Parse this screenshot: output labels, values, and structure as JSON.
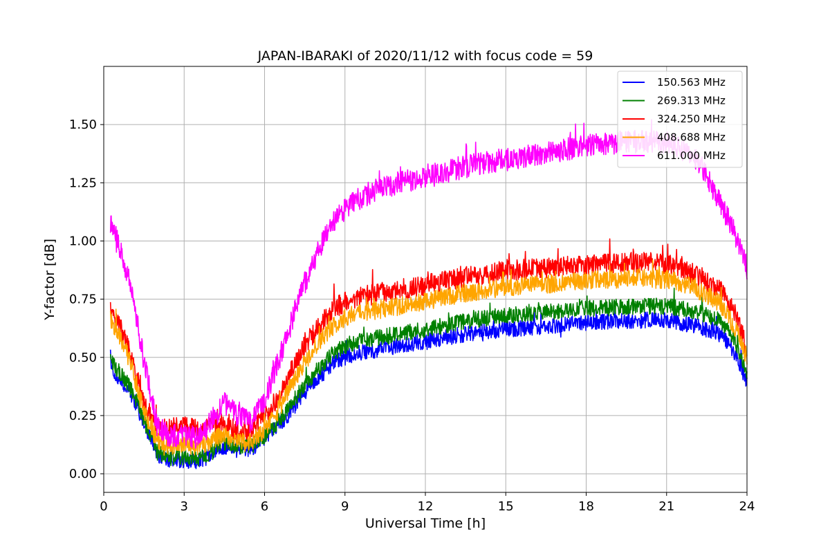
{
  "chart_data": {
    "type": "line",
    "title": "JAPAN-IBARAKI of 2020/11/12 with focus code = 59",
    "xlabel": "Universal Time [h]",
    "ylabel": "Y-factor [dB]",
    "xlim": [
      0,
      24
    ],
    "ylim": [
      -0.08,
      1.75
    ],
    "x_ticks": [
      0,
      3,
      6,
      9,
      12,
      15,
      18,
      21,
      24
    ],
    "x_tick_labels": [
      "0",
      "3",
      "6",
      "9",
      "12",
      "15",
      "18",
      "21",
      "24"
    ],
    "y_ticks": [
      0,
      0.25,
      0.5,
      0.75,
      1.0,
      1.25,
      1.5
    ],
    "y_tick_labels": [
      "0.00",
      "0.25",
      "0.50",
      "0.75",
      "1.00",
      "1.25",
      "1.50"
    ],
    "grid": true,
    "legend_position": "top-right",
    "x": [
      0.25,
      0.5,
      1.0,
      1.5,
      2.0,
      2.5,
      3.0,
      3.5,
      4.0,
      4.5,
      5.0,
      5.5,
      6.0,
      6.5,
      7.0,
      7.5,
      8.0,
      8.5,
      9.0,
      9.5,
      10.0,
      11.0,
      12.0,
      13.0,
      14.0,
      15.0,
      16.0,
      17.0,
      18.0,
      19.0,
      20.0,
      21.0,
      21.5,
      22.0,
      22.5,
      23.0,
      23.5,
      24.0
    ],
    "series": [
      {
        "name": "150.563 MHz",
        "color": "#0000ff",
        "noise": 0.035,
        "values": [
          0.46,
          0.42,
          0.35,
          0.22,
          0.08,
          0.06,
          0.06,
          0.05,
          0.08,
          0.12,
          0.1,
          0.11,
          0.15,
          0.2,
          0.27,
          0.35,
          0.41,
          0.47,
          0.5,
          0.52,
          0.53,
          0.55,
          0.57,
          0.59,
          0.61,
          0.62,
          0.63,
          0.64,
          0.65,
          0.655,
          0.66,
          0.66,
          0.65,
          0.64,
          0.62,
          0.6,
          0.53,
          0.4
        ]
      },
      {
        "name": "269.313 MHz",
        "color": "#008000",
        "noise": 0.035,
        "values": [
          0.49,
          0.45,
          0.37,
          0.23,
          0.09,
          0.07,
          0.07,
          0.06,
          0.09,
          0.13,
          0.11,
          0.12,
          0.16,
          0.22,
          0.3,
          0.38,
          0.45,
          0.51,
          0.55,
          0.57,
          0.58,
          0.6,
          0.62,
          0.645,
          0.665,
          0.68,
          0.69,
          0.7,
          0.71,
          0.715,
          0.72,
          0.72,
          0.71,
          0.7,
          0.68,
          0.66,
          0.58,
          0.44
        ]
      },
      {
        "name": "324.250 MHz",
        "color": "#ff0000",
        "noise": 0.045,
        "values": [
          0.7,
          0.66,
          0.52,
          0.3,
          0.2,
          0.2,
          0.21,
          0.19,
          0.2,
          0.22,
          0.18,
          0.19,
          0.25,
          0.33,
          0.45,
          0.55,
          0.63,
          0.7,
          0.74,
          0.76,
          0.77,
          0.79,
          0.81,
          0.835,
          0.855,
          0.87,
          0.88,
          0.89,
          0.9,
          0.905,
          0.91,
          0.9,
          0.88,
          0.86,
          0.83,
          0.79,
          0.7,
          0.54
        ]
      },
      {
        "name": "408.688 MHz",
        "color": "#ffa500",
        "noise": 0.04,
        "values": [
          0.66,
          0.62,
          0.48,
          0.26,
          0.14,
          0.12,
          0.13,
          0.11,
          0.14,
          0.17,
          0.13,
          0.14,
          0.19,
          0.27,
          0.38,
          0.48,
          0.56,
          0.63,
          0.67,
          0.69,
          0.7,
          0.72,
          0.74,
          0.765,
          0.785,
          0.8,
          0.81,
          0.82,
          0.83,
          0.835,
          0.84,
          0.835,
          0.82,
          0.8,
          0.77,
          0.73,
          0.64,
          0.5
        ]
      },
      {
        "name": "611.000 MHz",
        "color": "#ff00ff",
        "noise": 0.05,
        "values": [
          1.08,
          1.0,
          0.82,
          0.48,
          0.2,
          0.16,
          0.17,
          0.15,
          0.22,
          0.3,
          0.25,
          0.22,
          0.32,
          0.48,
          0.65,
          0.82,
          0.96,
          1.07,
          1.14,
          1.18,
          1.21,
          1.25,
          1.28,
          1.305,
          1.33,
          1.35,
          1.37,
          1.39,
          1.41,
          1.42,
          1.43,
          1.42,
          1.4,
          1.37,
          1.28,
          1.16,
          1.05,
          0.88
        ]
      }
    ]
  }
}
